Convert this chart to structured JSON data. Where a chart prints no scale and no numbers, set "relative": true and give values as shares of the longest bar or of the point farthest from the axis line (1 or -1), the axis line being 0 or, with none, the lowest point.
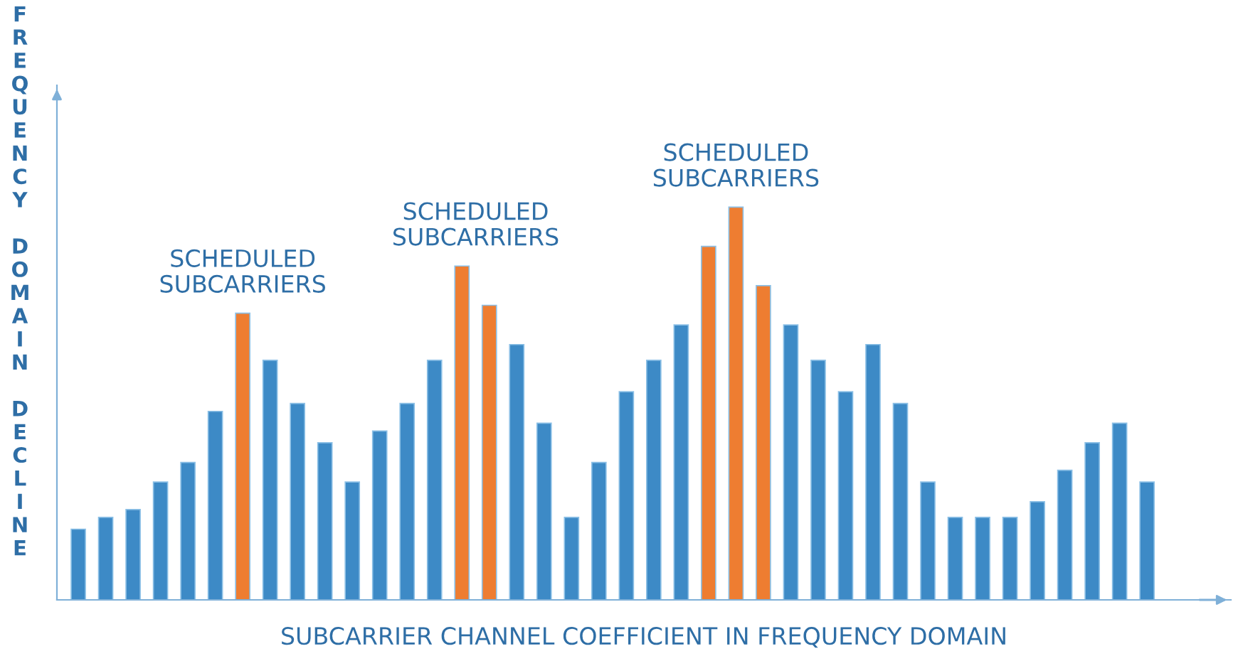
{
  "chart_data": {
    "type": "bar",
    "relative": true,
    "xlabel": "SUBCARRIER CHANNEL COEFFICIENT IN FREQUENCY DOMAIN",
    "ylabel": "FREQUENCY DOMAIN DECLINE",
    "annotations": [
      "SCHEDULED\nSUBCARRIERS",
      "SCHEDULED\nSUBCARRIERS",
      "SCHEDULED\nSUBCARRIERS"
    ],
    "categories": [
      null,
      null,
      null,
      null,
      null,
      null,
      null,
      null,
      null,
      null,
      null,
      null,
      null,
      null,
      null,
      null,
      null,
      null,
      null,
      null,
      null,
      null,
      null,
      null,
      null,
      null,
      null,
      null,
      null,
      null,
      null,
      null,
      null,
      null,
      null,
      null,
      null,
      null,
      null,
      null
    ],
    "values": [
      0.18,
      0.21,
      0.23,
      0.3,
      0.35,
      0.48,
      0.73,
      0.61,
      0.5,
      0.4,
      0.3,
      0.43,
      0.5,
      0.61,
      0.85,
      0.75,
      0.65,
      0.45,
      0.21,
      0.35,
      0.53,
      0.61,
      0.7,
      0.9,
      1,
      0.8,
      0.7,
      0.61,
      0.53,
      0.65,
      0.5,
      0.3,
      0.21,
      0.21,
      0.21,
      0.25,
      0.33,
      0.4,
      0.45,
      0.3
    ],
    "colors": [
      "#3d8ac6",
      "#3d8ac6",
      "#3d8ac6",
      "#3d8ac6",
      "#3d8ac6",
      "#3d8ac6",
      "#ee7d31",
      "#3d8ac6",
      "#3d8ac6",
      "#3d8ac6",
      "#3d8ac6",
      "#3d8ac6",
      "#3d8ac6",
      "#3d8ac6",
      "#ee7d31",
      "#ee7d31",
      "#3d8ac6",
      "#3d8ac6",
      "#3d8ac6",
      "#3d8ac6",
      "#3d8ac6",
      "#3d8ac6",
      "#3d8ac6",
      "#ee7d31",
      "#ee7d31",
      "#ee7d31",
      "#3d8ac6",
      "#3d8ac6",
      "#3d8ac6",
      "#3d8ac6",
      "#3d8ac6",
      "#3d8ac6",
      "#3d8ac6",
      "#3d8ac6",
      "#3d8ac6",
      "#3d8ac6",
      "#3d8ac6",
      "#3d8ac6",
      "#3d8ac6",
      "#3d8ac6"
    ],
    "grid": false,
    "legend": false
  }
}
